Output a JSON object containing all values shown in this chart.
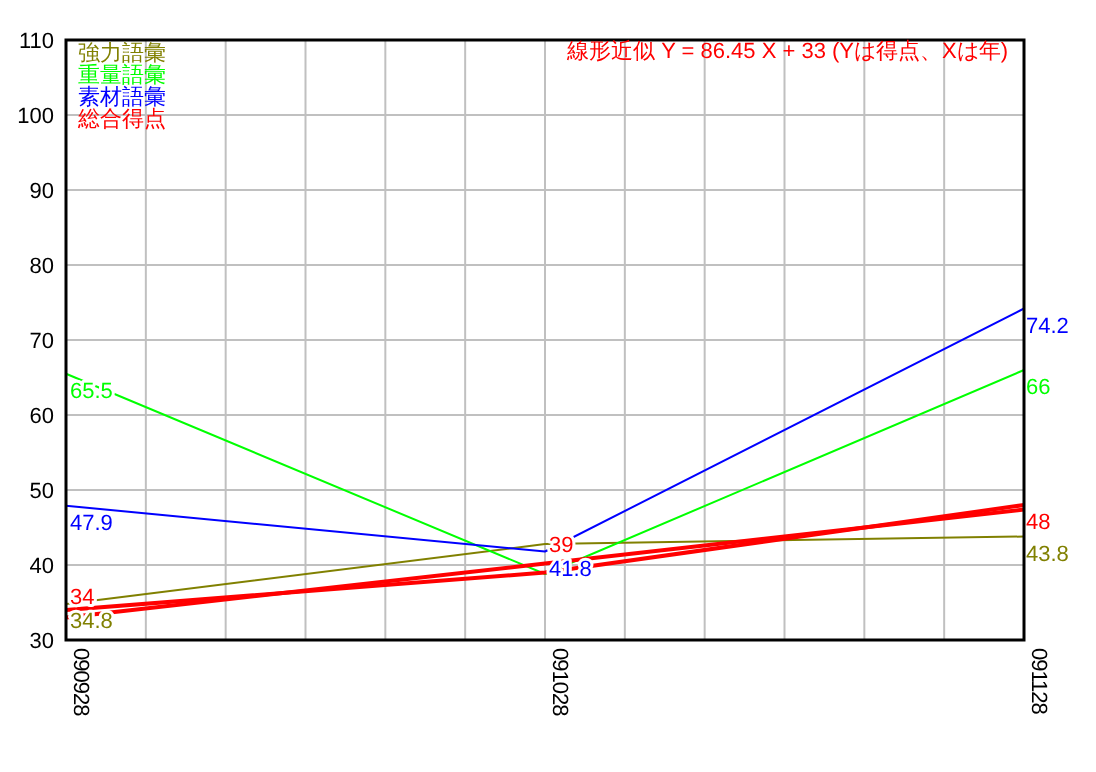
{
  "chart_data": {
    "type": "line",
    "categories": [
      "090928",
      "091028",
      "091128"
    ],
    "series": [
      {
        "name": "強力語彙",
        "color": "#808000",
        "values": [
          34.8,
          42.8,
          43.8
        ],
        "value_labels": [
          "34.8",
          null,
          "43.8"
        ]
      },
      {
        "name": "重量語彙",
        "color": "#00ff00",
        "values": [
          65.5,
          38.8,
          66
        ],
        "value_labels": [
          "65.5",
          null,
          "66"
        ]
      },
      {
        "name": "素材語彙",
        "color": "#0000ff",
        "values": [
          47.9,
          41.8,
          74.2
        ]
      },
      {
        "name": "総合得点",
        "color": "#ff0000",
        "values": [
          34,
          39,
          48
        ]
      },
      {
        "color": "#ff0000",
        "values": [
          33,
          40.2,
          47.4
        ],
        "value_labels": [
          null,
          null,
          null
        ]
      }
    ],
    "annotations": [
      "線形近似 Y = 86.45 X + 33 (Yは得点、Xは年)"
    ],
    "ylim": [
      30,
      110
    ],
    "yticks": [
      30,
      40,
      50,
      60,
      70,
      80,
      90,
      100,
      110
    ],
    "grid": true,
    "legend": "top left",
    "data_labels": true
  }
}
